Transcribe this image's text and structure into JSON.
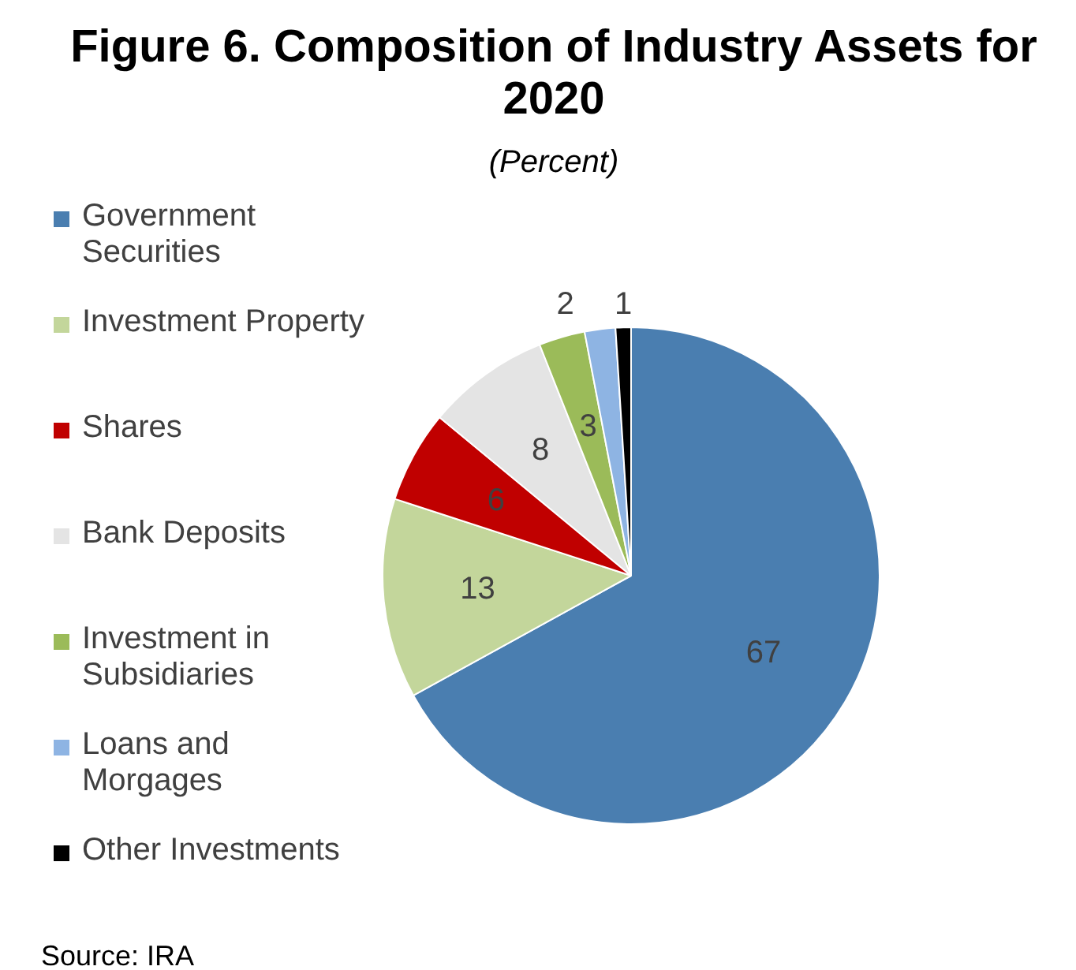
{
  "chart_data": {
    "type": "pie",
    "title": "Figure 6. Composition of Industry Assets for 2020",
    "subtitle": "(Percent)",
    "categories": [
      "Government Securities",
      "Investment Property",
      "Shares",
      "Bank Deposits",
      "Investment in Subsidiaries",
      "Loans and Morgages",
      "Other Investments"
    ],
    "values": [
      67,
      13,
      6,
      8,
      3,
      2,
      1
    ],
    "colors": [
      "#4a7eb0",
      "#c3d69b",
      "#c00000",
      "#e4e4e4",
      "#9bbb59",
      "#8eb4e3",
      "#000000"
    ],
    "data_labels": true,
    "legend": "left",
    "annotations": [
      "Source: IRA"
    ]
  }
}
